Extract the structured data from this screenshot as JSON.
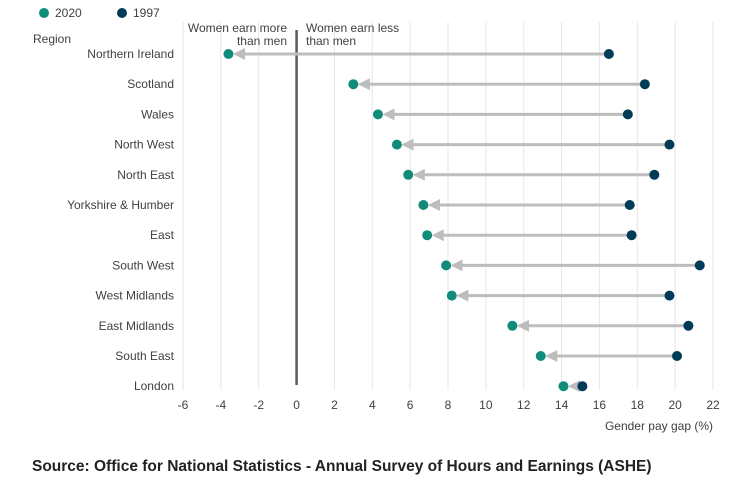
{
  "chart_data": {
    "type": "dumbbell",
    "legend": [
      {
        "name": "2020",
        "color": "#118C7B"
      },
      {
        "name": "1997",
        "color": "#003C57"
      }
    ],
    "y_axis_title": "Region",
    "xlabel": "Gender pay gap (%)",
    "xlim": [
      -6,
      22
    ],
    "xticks": [
      -6,
      -4,
      -2,
      0,
      2,
      4,
      6,
      8,
      10,
      12,
      14,
      16,
      18,
      20,
      22
    ],
    "annotation_left": [
      "Women earn more",
      "than men"
    ],
    "annotation_right": [
      "Women earn less",
      "than men"
    ],
    "categories": [
      "Northern Ireland",
      "Scotland",
      "Wales",
      "North West",
      "North East",
      "Yorkshire & Humber",
      "East",
      "South West",
      "West Midlands",
      "East Midlands",
      "South East",
      "London"
    ],
    "series": [
      {
        "name": "1997",
        "values": [
          16.5,
          18.4,
          17.5,
          19.7,
          18.9,
          17.6,
          17.7,
          21.3,
          19.7,
          20.7,
          20.1,
          15.1
        ]
      },
      {
        "name": "2020",
        "values": [
          -3.6,
          3.0,
          4.3,
          5.3,
          5.9,
          6.7,
          6.9,
          7.9,
          8.2,
          11.4,
          12.9,
          14.1
        ]
      }
    ]
  },
  "source": "Source: Office for National Statistics - Annual Survey of Hours and Earnings (ASHE)",
  "colors": {
    "arrow": "#BDBDBD",
    "zero_line": "#5A5A5A",
    "grid": "#E6E6E6"
  }
}
